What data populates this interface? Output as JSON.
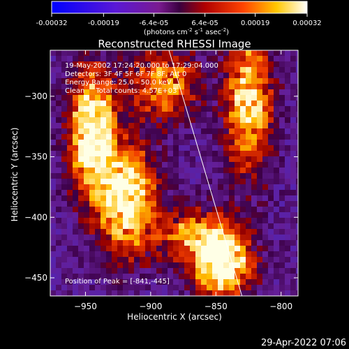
{
  "colorbar": {
    "ticks": [
      "-0.00032",
      "-0.00019",
      "-6.4e-05",
      "6.4e-05",
      "0.00019",
      "0.00032"
    ],
    "tick_values": [
      -0.00032,
      -0.00019,
      -6.4e-05,
      6.4e-05,
      0.00019,
      0.00032
    ],
    "range": [
      -0.00032,
      0.00032
    ],
    "units_label": "(photons cm",
    "units_exp1": "-2",
    "units_mid": " s",
    "units_exp2": "-1",
    "units_mid2": " asec",
    "units_exp3": "-2",
    "units_end": ")"
  },
  "chart_data": {
    "type": "heatmap",
    "title": "Reconstructed RHESSI Image",
    "xlabel": "Heliocentric X (arcsec)",
    "ylabel": "Heliocentric Y (arcsec)",
    "xlim": [
      -977,
      -787
    ],
    "ylim": [
      -465,
      -262
    ],
    "x_ticks": [
      -950,
      -900,
      -850,
      -800
    ],
    "x_tick_labels": [
      "−950",
      "−900",
      "−850",
      "−800"
    ],
    "y_ticks": [
      -300,
      -350,
      -400,
      -450
    ],
    "y_tick_labels": [
      "−300",
      "−350",
      "−400",
      "−450"
    ],
    "limb_line": [
      [
        -886,
        -262
      ],
      [
        -830,
        -465
      ]
    ],
    "bright_regions": [
      {
        "x": -945,
        "y": -330,
        "sx": 12,
        "sy": 35,
        "level": 1.0
      },
      {
        "x": -918,
        "y": -385,
        "sx": 15,
        "sy": 30,
        "level": 0.95
      },
      {
        "x": -845,
        "y": -440,
        "sx": 15,
        "sy": 18,
        "level": 1.0
      },
      {
        "x": -825,
        "y": -305,
        "sx": 12,
        "sy": 40,
        "level": 0.8
      },
      {
        "x": -865,
        "y": -415,
        "sx": 20,
        "sy": 15,
        "level": 0.6
      },
      {
        "x": -890,
        "y": -290,
        "sx": 18,
        "sy": 20,
        "level": 0.6
      }
    ],
    "peak": [
      -841,
      -445
    ],
    "colormap": "blue-purple-red-yellow-white"
  },
  "annotations": {
    "line1": "19-May-2002 17:24:20.000 to 17:29:04.000",
    "line2": "Detectors: 3F 4F 5F 6F 7F 8F, Att 0",
    "line3": "Energy Range: 25.0 - 50.0 keV",
    "line4": "Clean     Total counts: 4.57E+03",
    "peak_label": "Position of Peak = [-841,-445]"
  },
  "footer": {
    "date": "29-Apr-2022 07:06"
  }
}
